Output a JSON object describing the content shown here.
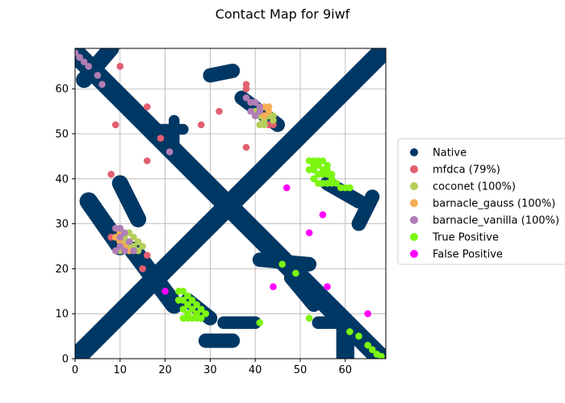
{
  "chart_data": {
    "type": "scatter",
    "title": "Contact Map for 9iwf",
    "xlabel": "",
    "ylabel": "",
    "xlim": [
      0,
      69
    ],
    "ylim": [
      0,
      69
    ],
    "x_ticks": [
      0,
      10,
      20,
      30,
      40,
      50,
      60
    ],
    "y_ticks": [
      0,
      10,
      20,
      30,
      40,
      50,
      60
    ],
    "grid": true,
    "legend_position": "right",
    "native_bands": [
      {
        "from": [
          0,
          0
        ],
        "to": [
          68,
          68
        ],
        "width": 2.2
      },
      {
        "from": [
          0,
          68
        ],
        "to": [
          18,
          50
        ],
        "width": 2.2
      },
      {
        "from": [
          18,
          50
        ],
        "to": [
          68,
          0
        ],
        "width": 2.2
      },
      {
        "from": [
          8,
          69
        ],
        "to": [
          2,
          62
        ],
        "width": 1.8
      },
      {
        "from": [
          3,
          35
        ],
        "to": [
          10,
          25
        ],
        "width": 2.0
      },
      {
        "from": [
          10,
          39
        ],
        "to": [
          14,
          31
        ],
        "width": 1.8
      },
      {
        "from": [
          13,
          24
        ],
        "to": [
          22,
          12
        ],
        "width": 2.0
      },
      {
        "from": [
          18,
          51
        ],
        "to": [
          24,
          51
        ],
        "width": 1.2
      },
      {
        "from": [
          22,
          53
        ],
        "to": [
          22,
          47
        ],
        "width": 1.2
      },
      {
        "from": [
          30,
          63
        ],
        "to": [
          35,
          64
        ],
        "width": 1.6
      },
      {
        "from": [
          37,
          58
        ],
        "to": [
          45,
          52
        ],
        "width": 1.6
      },
      {
        "from": [
          41,
          22
        ],
        "to": [
          52,
          21
        ],
        "width": 1.6
      },
      {
        "from": [
          48,
          18
        ],
        "to": [
          53,
          12
        ],
        "width": 1.6
      },
      {
        "from": [
          54,
          8
        ],
        "to": [
          58,
          8
        ],
        "width": 1.4
      },
      {
        "from": [
          60,
          0
        ],
        "to": [
          60,
          8
        ],
        "width": 2.0
      },
      {
        "from": [
          29,
          4
        ],
        "to": [
          35,
          4
        ],
        "width": 1.6
      },
      {
        "from": [
          33,
          8
        ],
        "to": [
          40,
          8
        ],
        "width": 1.4
      },
      {
        "from": [
          25,
          13
        ],
        "to": [
          30,
          9
        ],
        "width": 1.6
      },
      {
        "from": [
          63,
          30
        ],
        "to": [
          66,
          36
        ],
        "width": 1.6
      },
      {
        "from": [
          56,
          39
        ],
        "to": [
          63,
          35
        ],
        "width": 1.6
      }
    ],
    "series": [
      {
        "name": "Native",
        "color": "#003865",
        "values": []
      },
      {
        "name": "mfdca (79%)",
        "color": "#e15f70",
        "values": [
          [
            10,
            65
          ],
          [
            9,
            52
          ],
          [
            16,
            56
          ],
          [
            19,
            49
          ],
          [
            16,
            44
          ],
          [
            28,
            52
          ],
          [
            32,
            55
          ],
          [
            38,
            61
          ],
          [
            38,
            60
          ],
          [
            38,
            47
          ],
          [
            8,
            41
          ],
          [
            8,
            27
          ],
          [
            16,
            23
          ],
          [
            15,
            20
          ],
          [
            43,
            52
          ],
          [
            44,
            52
          ]
        ]
      },
      {
        "name": "coconet (100%)",
        "color": "#b4cf5a",
        "values": [
          [
            40,
            55
          ],
          [
            41,
            54
          ],
          [
            42,
            53
          ],
          [
            43,
            54
          ],
          [
            44,
            53
          ],
          [
            44,
            54
          ],
          [
            41,
            52
          ],
          [
            42,
            52
          ],
          [
            12,
            28
          ],
          [
            13,
            27
          ],
          [
            14,
            26
          ],
          [
            15,
            25
          ],
          [
            13,
            25
          ],
          [
            14,
            24
          ],
          [
            11,
            26
          ],
          [
            12,
            25
          ],
          [
            10,
            24
          ],
          [
            11,
            27
          ]
        ]
      },
      {
        "name": "barnacle_gauss (100%)",
        "color": "#f5ae52",
        "values": [
          [
            42,
            56
          ],
          [
            43,
            56
          ],
          [
            43,
            55
          ],
          [
            42,
            54
          ],
          [
            9,
            27
          ],
          [
            10,
            28
          ],
          [
            10,
            26
          ],
          [
            11,
            25
          ],
          [
            12,
            24
          ]
        ]
      },
      {
        "name": "barnacle_vanilla (100%)",
        "color": "#b07eb5",
        "values": [
          [
            0,
            68
          ],
          [
            1,
            67
          ],
          [
            2,
            66
          ],
          [
            3,
            65
          ],
          [
            5,
            63
          ],
          [
            6,
            61
          ],
          [
            21,
            46
          ],
          [
            38,
            58
          ],
          [
            39,
            57
          ],
          [
            40,
            57
          ],
          [
            39,
            55
          ],
          [
            40,
            54
          ],
          [
            41,
            56
          ],
          [
            41,
            55
          ],
          [
            9,
            29
          ],
          [
            10,
            29
          ],
          [
            11,
            28
          ],
          [
            10,
            27
          ],
          [
            11,
            24
          ],
          [
            12,
            26
          ],
          [
            13,
            24
          ],
          [
            9,
            24
          ],
          [
            10,
            25
          ]
        ]
      },
      {
        "name": "True Positive",
        "color": "#7cf511",
        "values": [
          [
            24,
            15
          ],
          [
            25,
            14
          ],
          [
            23,
            15
          ],
          [
            24,
            13
          ],
          [
            25,
            12
          ],
          [
            26,
            11
          ],
          [
            27,
            12
          ],
          [
            24,
            11
          ],
          [
            25,
            10
          ],
          [
            26,
            9
          ],
          [
            27,
            10
          ],
          [
            28,
            11
          ],
          [
            23,
            13
          ],
          [
            25,
            9
          ],
          [
            27,
            9
          ],
          [
            28,
            9
          ],
          [
            26,
            13
          ],
          [
            29,
            10
          ],
          [
            24,
            9
          ],
          [
            52,
            44
          ],
          [
            53,
            43
          ],
          [
            54,
            43
          ],
          [
            55,
            42
          ],
          [
            53,
            42
          ],
          [
            54,
            41
          ],
          [
            55,
            41
          ],
          [
            56,
            41
          ],
          [
            57,
            40
          ],
          [
            56,
            42
          ],
          [
            52,
            42
          ],
          [
            53,
            40
          ],
          [
            54,
            39
          ],
          [
            55,
            39
          ],
          [
            56,
            39
          ],
          [
            57,
            39
          ],
          [
            58,
            39
          ],
          [
            59,
            38
          ],
          [
            57,
            41
          ],
          [
            53,
            44
          ],
          [
            54,
            44
          ],
          [
            55,
            44
          ],
          [
            56,
            43
          ],
          [
            61,
            38
          ],
          [
            60,
            38
          ],
          [
            46,
            21
          ],
          [
            49,
            19
          ],
          [
            41,
            8
          ],
          [
            52,
            9
          ],
          [
            61,
            6
          ],
          [
            63,
            5
          ],
          [
            65,
            3
          ],
          [
            66,
            2
          ],
          [
            67,
            1
          ],
          [
            68,
            0.5
          ]
        ]
      },
      {
        "name": "False Positive",
        "color": "#ff00ff",
        "values": [
          [
            20,
            15
          ],
          [
            44,
            16
          ],
          [
            47,
            38
          ],
          [
            52,
            28
          ],
          [
            55,
            32
          ],
          [
            56,
            16
          ],
          [
            65,
            10
          ]
        ]
      }
    ]
  }
}
